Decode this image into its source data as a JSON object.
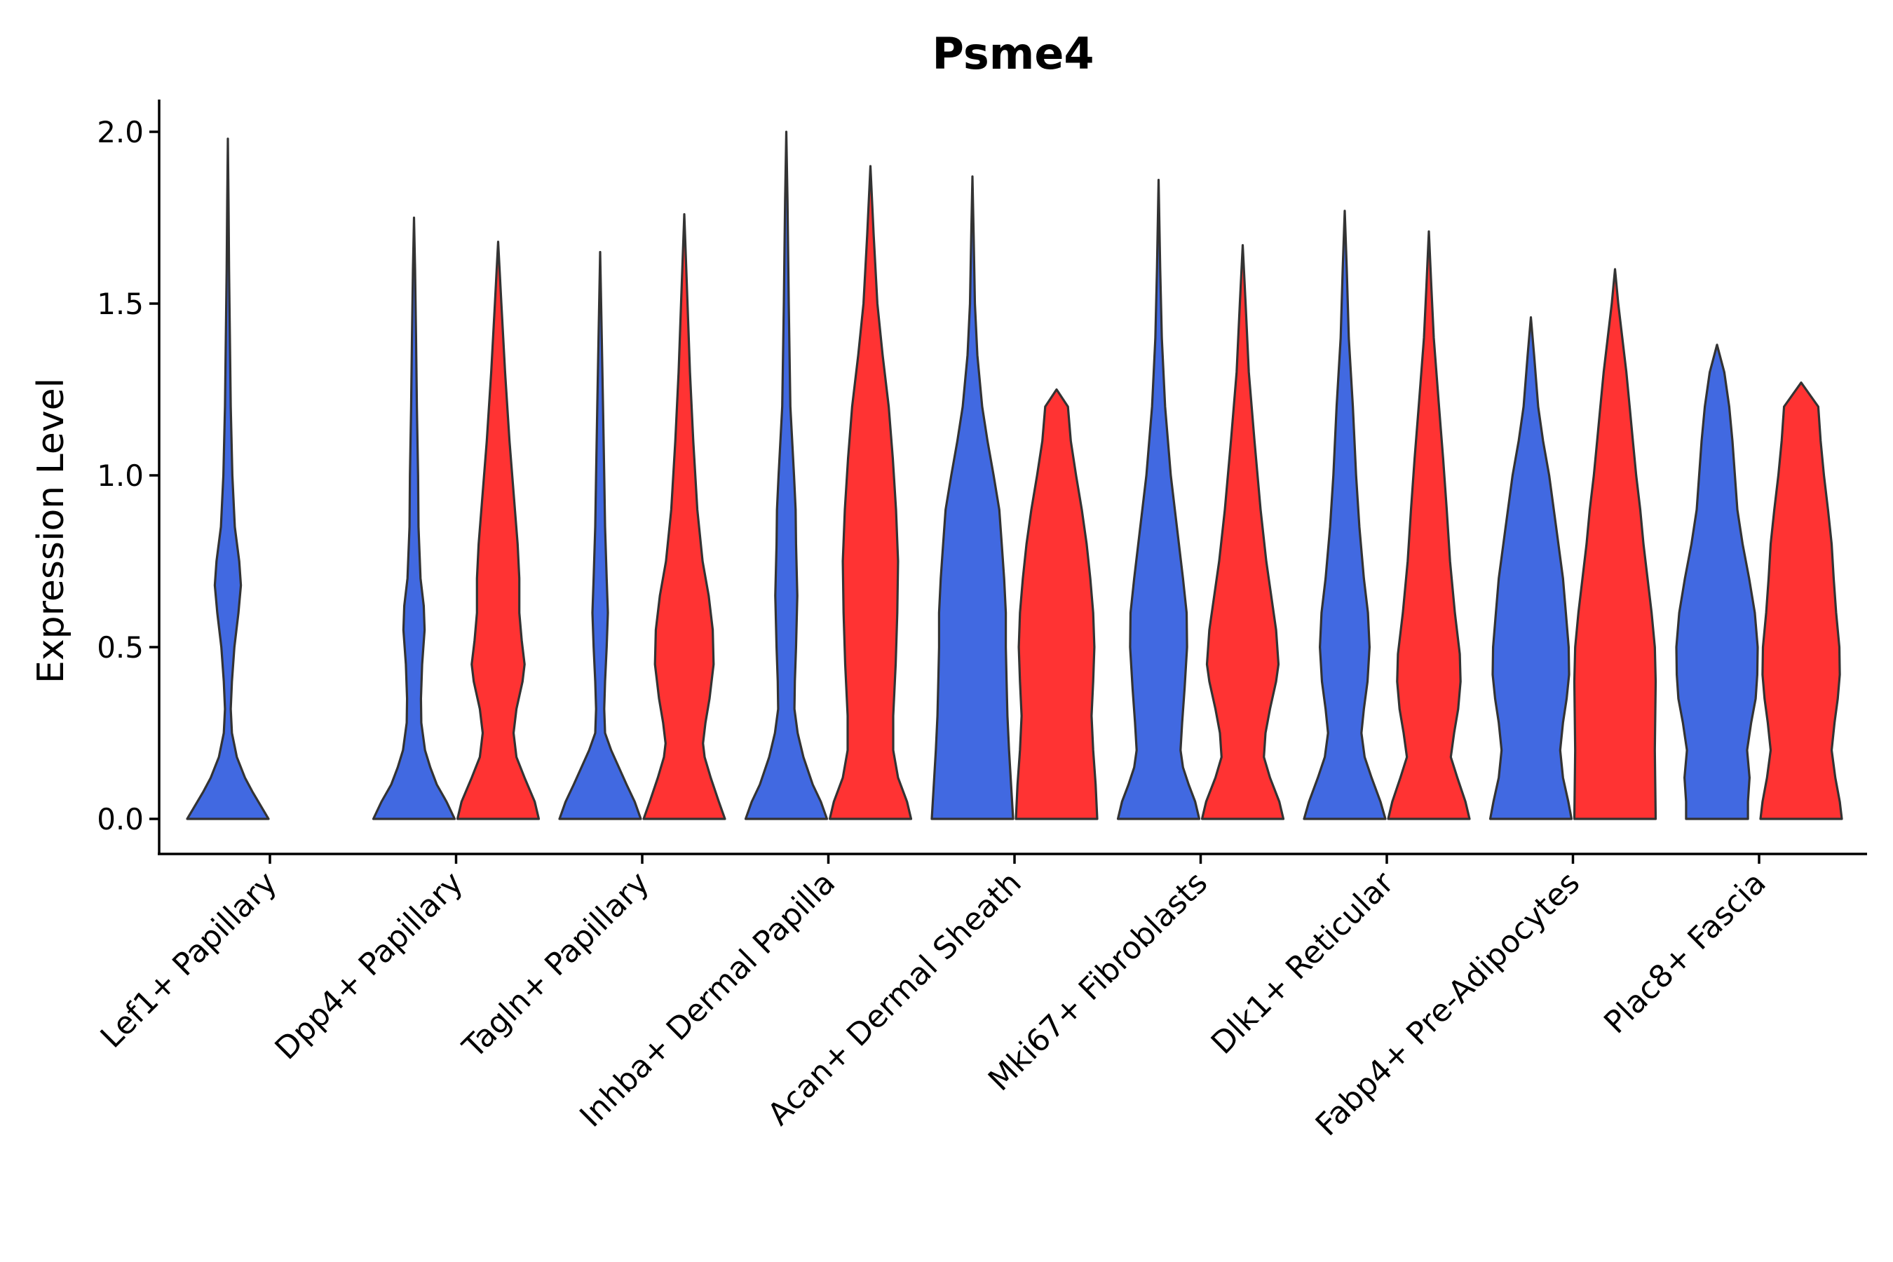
{
  "chart_data": {
    "type": "violin",
    "title": "Psme4",
    "xlabel": "",
    "ylabel": "Expression Level",
    "ylim": [
      -0.1,
      2.1
    ],
    "yticks": [
      "0.0",
      "0.5",
      "1.0",
      "1.5",
      "2.0"
    ],
    "grid": false,
    "legend": "none",
    "colors": [
      "#4169E1",
      "#FF3333"
    ],
    "categories": [
      "Lef1+ Papillary",
      "Dpp4+ Papillary",
      "Tagln+ Papillary",
      "Inhba+ Dermal Papilla",
      "Acan+ Dermal Sheath",
      "Mki67+ Fibroblasts",
      "Dlk1+ Reticular",
      "Fabp4+ Pre-Adipocytes",
      "Plac8+ Fascia"
    ],
    "violins": [
      {
        "category_index": 0,
        "side": "left",
        "color": "#4169E1",
        "max": 1.98,
        "profile": [
          [
            0.0,
            1.0
          ],
          [
            0.03,
            0.85
          ],
          [
            0.08,
            0.6
          ],
          [
            0.12,
            0.42
          ],
          [
            0.18,
            0.22
          ],
          [
            0.25,
            0.1
          ],
          [
            0.32,
            0.07
          ],
          [
            0.4,
            0.1
          ],
          [
            0.5,
            0.16
          ],
          [
            0.6,
            0.26
          ],
          [
            0.68,
            0.32
          ],
          [
            0.75,
            0.28
          ],
          [
            0.85,
            0.17
          ],
          [
            1.0,
            0.11
          ],
          [
            1.2,
            0.07
          ],
          [
            1.4,
            0.05
          ],
          [
            1.6,
            0.03
          ],
          [
            1.8,
            0.015
          ],
          [
            1.98,
            0.0
          ]
        ]
      },
      {
        "category_index": 1,
        "side": "left",
        "color": "#4169E1",
        "max": 1.75,
        "profile": [
          [
            0.0,
            1.0
          ],
          [
            0.05,
            0.8
          ],
          [
            0.1,
            0.56
          ],
          [
            0.15,
            0.4
          ],
          [
            0.2,
            0.27
          ],
          [
            0.28,
            0.18
          ],
          [
            0.35,
            0.17
          ],
          [
            0.45,
            0.2
          ],
          [
            0.55,
            0.26
          ],
          [
            0.62,
            0.24
          ],
          [
            0.7,
            0.16
          ],
          [
            0.85,
            0.11
          ],
          [
            1.0,
            0.1
          ],
          [
            1.2,
            0.07
          ],
          [
            1.4,
            0.05
          ],
          [
            1.6,
            0.025
          ],
          [
            1.75,
            0.0
          ]
        ]
      },
      {
        "category_index": 1,
        "side": "right",
        "color": "#FF3333",
        "max": 1.68,
        "profile": [
          [
            0.0,
            1.0
          ],
          [
            0.05,
            0.9
          ],
          [
            0.12,
            0.65
          ],
          [
            0.18,
            0.45
          ],
          [
            0.25,
            0.38
          ],
          [
            0.32,
            0.45
          ],
          [
            0.4,
            0.6
          ],
          [
            0.45,
            0.65
          ],
          [
            0.52,
            0.58
          ],
          [
            0.6,
            0.52
          ],
          [
            0.7,
            0.52
          ],
          [
            0.8,
            0.48
          ],
          [
            0.95,
            0.38
          ],
          [
            1.1,
            0.28
          ],
          [
            1.3,
            0.17
          ],
          [
            1.5,
            0.08
          ],
          [
            1.68,
            0.0
          ]
        ]
      },
      {
        "category_index": 2,
        "side": "left",
        "color": "#4169E1",
        "max": 1.65,
        "profile": [
          [
            0.0,
            1.0
          ],
          [
            0.05,
            0.85
          ],
          [
            0.1,
            0.65
          ],
          [
            0.15,
            0.46
          ],
          [
            0.2,
            0.27
          ],
          [
            0.25,
            0.12
          ],
          [
            0.32,
            0.1
          ],
          [
            0.4,
            0.12
          ],
          [
            0.5,
            0.16
          ],
          [
            0.6,
            0.19
          ],
          [
            0.7,
            0.16
          ],
          [
            0.85,
            0.12
          ],
          [
            1.0,
            0.1
          ],
          [
            1.2,
            0.07
          ],
          [
            1.4,
            0.04
          ],
          [
            1.65,
            0.0
          ]
        ]
      },
      {
        "category_index": 2,
        "side": "right",
        "color": "#FF3333",
        "max": 1.76,
        "profile": [
          [
            0.0,
            1.0
          ],
          [
            0.05,
            0.85
          ],
          [
            0.12,
            0.65
          ],
          [
            0.18,
            0.5
          ],
          [
            0.22,
            0.46
          ],
          [
            0.28,
            0.52
          ],
          [
            0.35,
            0.62
          ],
          [
            0.45,
            0.72
          ],
          [
            0.55,
            0.7
          ],
          [
            0.65,
            0.6
          ],
          [
            0.75,
            0.45
          ],
          [
            0.9,
            0.32
          ],
          [
            1.1,
            0.22
          ],
          [
            1.3,
            0.14
          ],
          [
            1.5,
            0.08
          ],
          [
            1.76,
            0.0
          ]
        ]
      },
      {
        "category_index": 3,
        "side": "left",
        "color": "#4169E1",
        "max": 2.0,
        "profile": [
          [
            0.0,
            1.0
          ],
          [
            0.05,
            0.85
          ],
          [
            0.1,
            0.65
          ],
          [
            0.18,
            0.42
          ],
          [
            0.25,
            0.28
          ],
          [
            0.32,
            0.2
          ],
          [
            0.4,
            0.21
          ],
          [
            0.5,
            0.24
          ],
          [
            0.65,
            0.27
          ],
          [
            0.8,
            0.24
          ],
          [
            0.9,
            0.23
          ],
          [
            1.0,
            0.19
          ],
          [
            1.2,
            0.1
          ],
          [
            1.5,
            0.06
          ],
          [
            1.8,
            0.03
          ],
          [
            2.0,
            0.0
          ]
        ]
      },
      {
        "category_index": 3,
        "side": "right",
        "color": "#FF3333",
        "max": 1.9,
        "profile": [
          [
            0.0,
            1.0
          ],
          [
            0.05,
            0.9
          ],
          [
            0.12,
            0.68
          ],
          [
            0.2,
            0.56
          ],
          [
            0.3,
            0.56
          ],
          [
            0.45,
            0.62
          ],
          [
            0.6,
            0.66
          ],
          [
            0.75,
            0.68
          ],
          [
            0.9,
            0.63
          ],
          [
            1.05,
            0.55
          ],
          [
            1.2,
            0.45
          ],
          [
            1.35,
            0.3
          ],
          [
            1.5,
            0.17
          ],
          [
            1.7,
            0.08
          ],
          [
            1.9,
            0.0
          ]
        ]
      },
      {
        "category_index": 4,
        "side": "left",
        "color": "#4169E1",
        "max": 1.87,
        "profile": [
          [
            0.0,
            1.0
          ],
          [
            0.1,
            0.95
          ],
          [
            0.2,
            0.9
          ],
          [
            0.3,
            0.86
          ],
          [
            0.4,
            0.84
          ],
          [
            0.5,
            0.82
          ],
          [
            0.6,
            0.82
          ],
          [
            0.7,
            0.78
          ],
          [
            0.8,
            0.72
          ],
          [
            0.9,
            0.66
          ],
          [
            1.0,
            0.52
          ],
          [
            1.1,
            0.37
          ],
          [
            1.2,
            0.24
          ],
          [
            1.35,
            0.12
          ],
          [
            1.5,
            0.06
          ],
          [
            1.7,
            0.03
          ],
          [
            1.87,
            0.0
          ]
        ]
      },
      {
        "category_index": 4,
        "side": "right",
        "color": "#FF3333",
        "max": 1.25,
        "profile": [
          [
            0.0,
            1.0
          ],
          [
            0.1,
            0.96
          ],
          [
            0.2,
            0.9
          ],
          [
            0.3,
            0.86
          ],
          [
            0.4,
            0.9
          ],
          [
            0.5,
            0.93
          ],
          [
            0.6,
            0.9
          ],
          [
            0.7,
            0.83
          ],
          [
            0.8,
            0.74
          ],
          [
            0.9,
            0.62
          ],
          [
            1.0,
            0.48
          ],
          [
            1.1,
            0.35
          ],
          [
            1.2,
            0.28
          ],
          [
            1.25,
            0.0
          ]
        ]
      },
      {
        "category_index": 5,
        "side": "left",
        "color": "#4169E1",
        "max": 1.86,
        "profile": [
          [
            0.0,
            1.0
          ],
          [
            0.05,
            0.9
          ],
          [
            0.1,
            0.74
          ],
          [
            0.15,
            0.6
          ],
          [
            0.2,
            0.54
          ],
          [
            0.28,
            0.58
          ],
          [
            0.38,
            0.64
          ],
          [
            0.5,
            0.7
          ],
          [
            0.6,
            0.69
          ],
          [
            0.7,
            0.6
          ],
          [
            0.85,
            0.45
          ],
          [
            1.0,
            0.3
          ],
          [
            1.2,
            0.16
          ],
          [
            1.4,
            0.08
          ],
          [
            1.6,
            0.04
          ],
          [
            1.86,
            0.0
          ]
        ]
      },
      {
        "category_index": 5,
        "side": "right",
        "color": "#FF3333",
        "max": 1.67,
        "profile": [
          [
            0.0,
            1.0
          ],
          [
            0.05,
            0.9
          ],
          [
            0.12,
            0.67
          ],
          [
            0.18,
            0.52
          ],
          [
            0.25,
            0.56
          ],
          [
            0.32,
            0.67
          ],
          [
            0.4,
            0.82
          ],
          [
            0.45,
            0.88
          ],
          [
            0.55,
            0.82
          ],
          [
            0.65,
            0.7
          ],
          [
            0.75,
            0.58
          ],
          [
            0.9,
            0.44
          ],
          [
            1.1,
            0.29
          ],
          [
            1.3,
            0.15
          ],
          [
            1.5,
            0.07
          ],
          [
            1.67,
            0.0
          ]
        ]
      },
      {
        "category_index": 6,
        "side": "left",
        "color": "#4169E1",
        "max": 1.77,
        "profile": [
          [
            0.0,
            1.0
          ],
          [
            0.05,
            0.88
          ],
          [
            0.12,
            0.66
          ],
          [
            0.18,
            0.49
          ],
          [
            0.25,
            0.41
          ],
          [
            0.32,
            0.47
          ],
          [
            0.4,
            0.56
          ],
          [
            0.5,
            0.61
          ],
          [
            0.6,
            0.57
          ],
          [
            0.7,
            0.47
          ],
          [
            0.85,
            0.36
          ],
          [
            1.0,
            0.28
          ],
          [
            1.2,
            0.2
          ],
          [
            1.4,
            0.1
          ],
          [
            1.6,
            0.05
          ],
          [
            1.77,
            0.0
          ]
        ]
      },
      {
        "category_index": 6,
        "side": "right",
        "color": "#FF3333",
        "max": 1.71,
        "profile": [
          [
            0.0,
            1.0
          ],
          [
            0.05,
            0.9
          ],
          [
            0.12,
            0.7
          ],
          [
            0.18,
            0.54
          ],
          [
            0.25,
            0.62
          ],
          [
            0.32,
            0.72
          ],
          [
            0.4,
            0.78
          ],
          [
            0.48,
            0.76
          ],
          [
            0.6,
            0.64
          ],
          [
            0.75,
            0.52
          ],
          [
            0.9,
            0.44
          ],
          [
            1.05,
            0.35
          ],
          [
            1.2,
            0.25
          ],
          [
            1.4,
            0.12
          ],
          [
            1.55,
            0.06
          ],
          [
            1.71,
            0.0
          ]
        ]
      },
      {
        "category_index": 7,
        "side": "left",
        "color": "#4169E1",
        "max": 1.46,
        "profile": [
          [
            0.0,
            1.0
          ],
          [
            0.05,
            0.92
          ],
          [
            0.12,
            0.79
          ],
          [
            0.2,
            0.72
          ],
          [
            0.28,
            0.79
          ],
          [
            0.35,
            0.88
          ],
          [
            0.42,
            0.94
          ],
          [
            0.5,
            0.93
          ],
          [
            0.6,
            0.86
          ],
          [
            0.7,
            0.79
          ],
          [
            0.85,
            0.62
          ],
          [
            1.0,
            0.45
          ],
          [
            1.1,
            0.3
          ],
          [
            1.2,
            0.18
          ],
          [
            1.35,
            0.08
          ],
          [
            1.46,
            0.0
          ]
        ]
      },
      {
        "category_index": 7,
        "side": "right",
        "color": "#FF3333",
        "max": 1.6,
        "profile": [
          [
            0.0,
            1.0
          ],
          [
            0.1,
            0.99
          ],
          [
            0.2,
            0.98
          ],
          [
            0.3,
            0.99
          ],
          [
            0.4,
            1.0
          ],
          [
            0.5,
            0.98
          ],
          [
            0.6,
            0.9
          ],
          [
            0.7,
            0.8
          ],
          [
            0.8,
            0.7
          ],
          [
            0.9,
            0.62
          ],
          [
            1.0,
            0.52
          ],
          [
            1.1,
            0.44
          ],
          [
            1.2,
            0.36
          ],
          [
            1.3,
            0.28
          ],
          [
            1.4,
            0.18
          ],
          [
            1.5,
            0.08
          ],
          [
            1.6,
            0.0
          ]
        ]
      },
      {
        "category_index": 8,
        "side": "left",
        "color": "#4169E1",
        "max": 1.38,
        "profile": [
          [
            0.0,
            0.76
          ],
          [
            0.05,
            0.76
          ],
          [
            0.12,
            0.8
          ],
          [
            0.2,
            0.74
          ],
          [
            0.28,
            0.84
          ],
          [
            0.35,
            0.95
          ],
          [
            0.42,
            0.99
          ],
          [
            0.5,
            1.0
          ],
          [
            0.6,
            0.93
          ],
          [
            0.7,
            0.79
          ],
          [
            0.8,
            0.63
          ],
          [
            0.9,
            0.5
          ],
          [
            1.0,
            0.44
          ],
          [
            1.1,
            0.38
          ],
          [
            1.2,
            0.3
          ],
          [
            1.3,
            0.18
          ],
          [
            1.38,
            0.0
          ]
        ]
      },
      {
        "category_index": 8,
        "side": "right",
        "color": "#FF3333",
        "max": 1.27,
        "profile": [
          [
            0.0,
            1.0
          ],
          [
            0.05,
            0.95
          ],
          [
            0.12,
            0.84
          ],
          [
            0.2,
            0.75
          ],
          [
            0.28,
            0.82
          ],
          [
            0.35,
            0.9
          ],
          [
            0.42,
            0.95
          ],
          [
            0.5,
            0.94
          ],
          [
            0.6,
            0.86
          ],
          [
            0.7,
            0.8
          ],
          [
            0.8,
            0.75
          ],
          [
            0.9,
            0.66
          ],
          [
            1.0,
            0.56
          ],
          [
            1.1,
            0.48
          ],
          [
            1.2,
            0.42
          ],
          [
            1.27,
            0.0
          ]
        ]
      }
    ]
  }
}
